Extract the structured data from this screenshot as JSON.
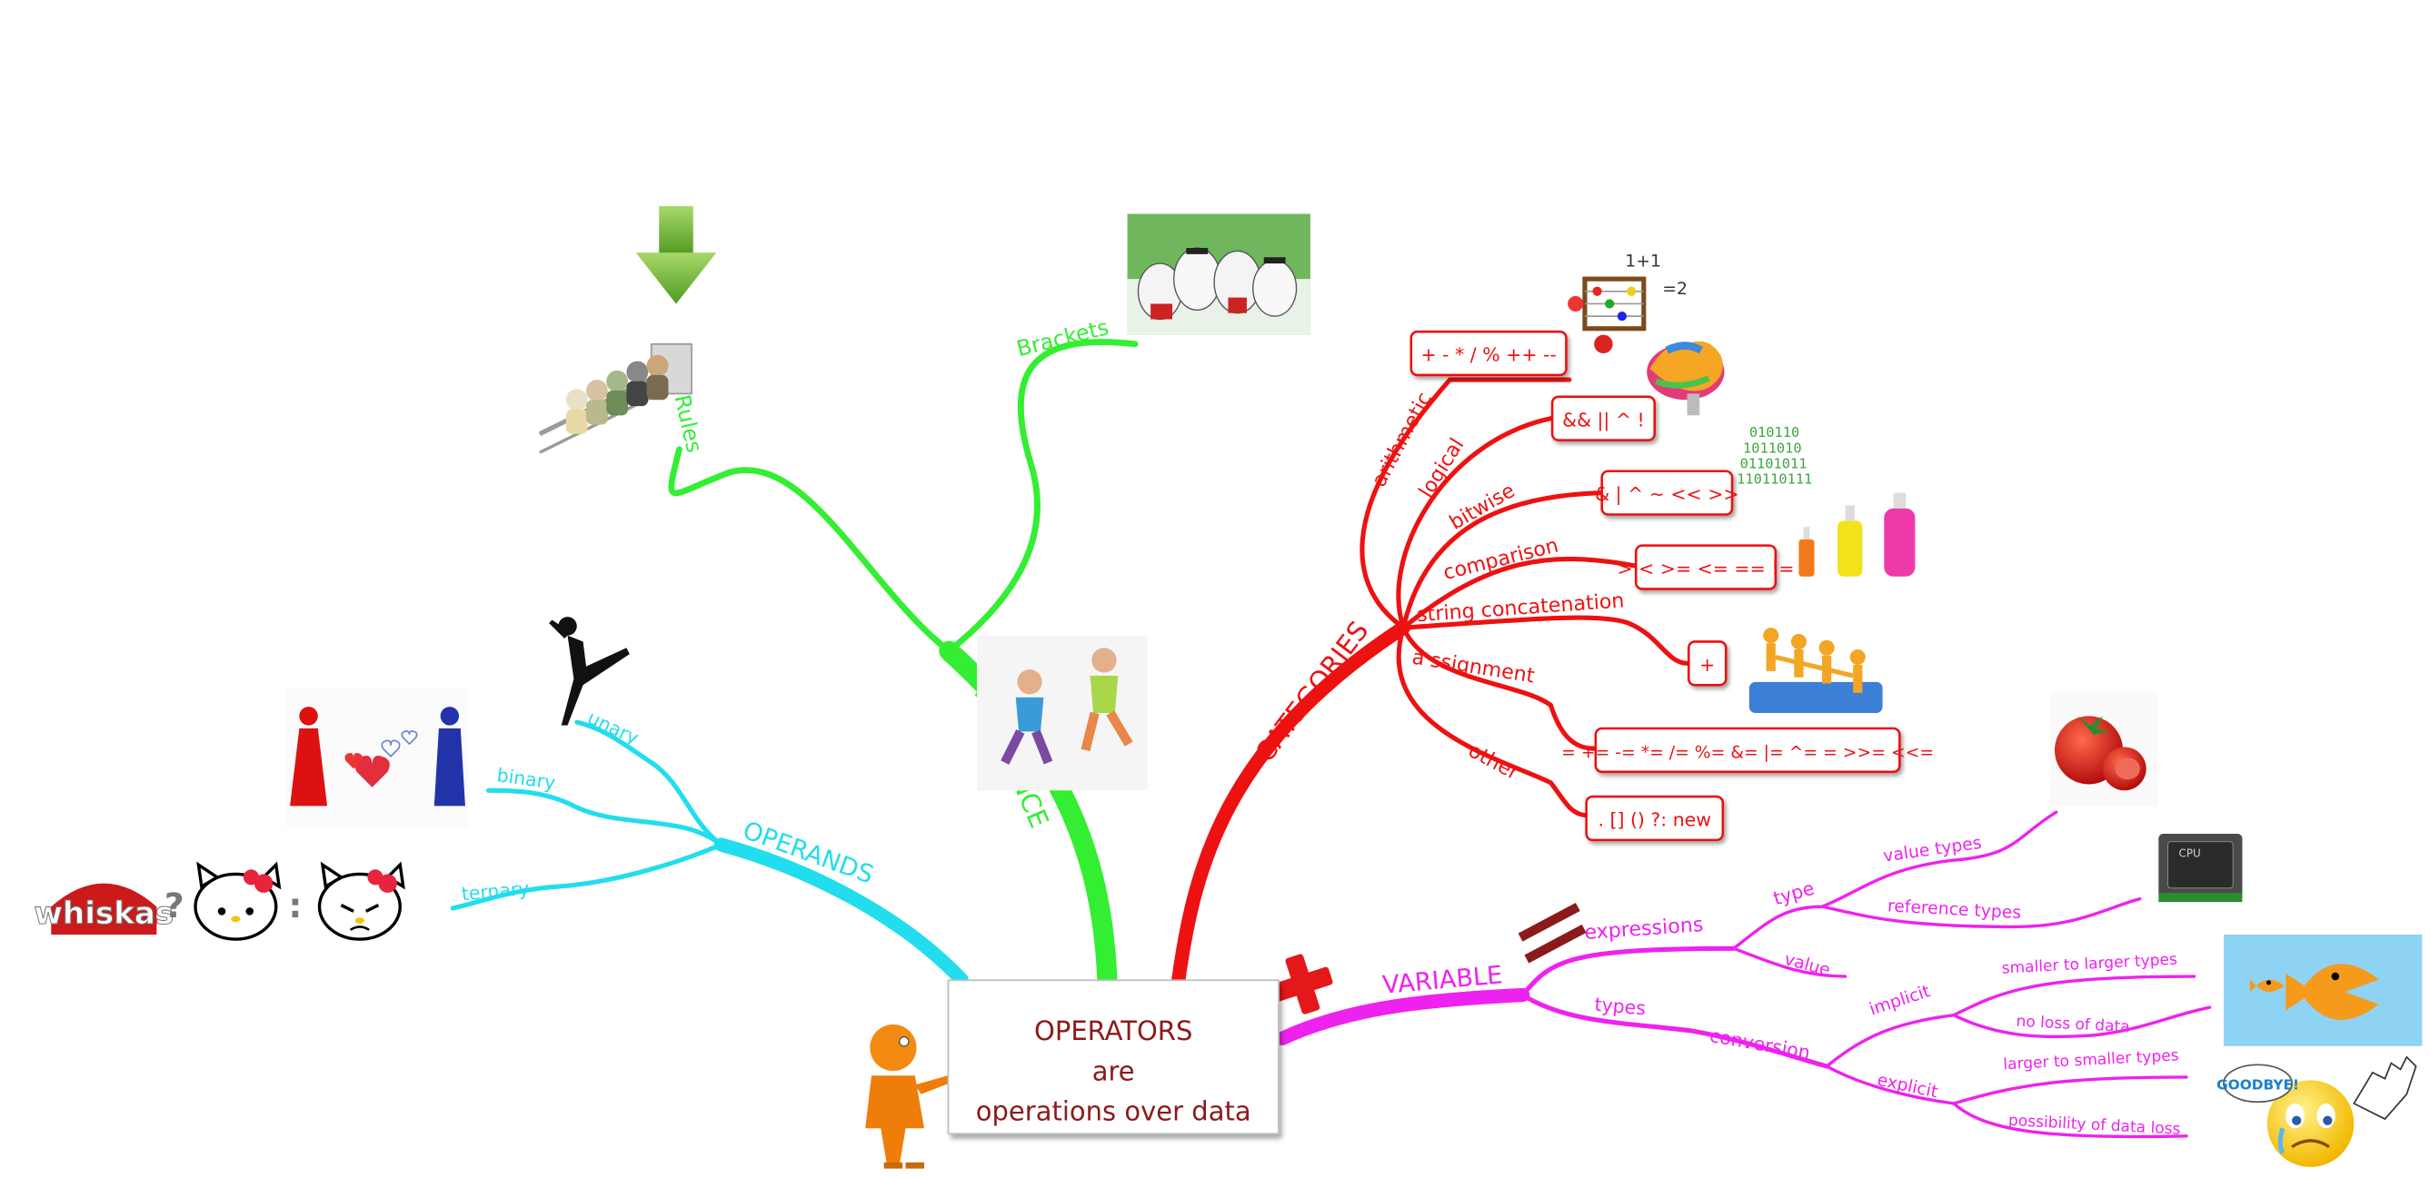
{
  "center": {
    "line1": "OPERATORS",
    "line2": "are",
    "line3": "operations over data"
  },
  "colors": {
    "precedence": "#33ee33",
    "categories": "#ee1111",
    "operands": "#22dded",
    "variable": "#ee22ee",
    "center_text": "#8b1a1a"
  },
  "precedence": {
    "label": "PRECEDENCE",
    "rules": "Rules",
    "brackets": "Brackets"
  },
  "categories": {
    "label": "CATEGORIES",
    "items": [
      {
        "name": "arithmetic",
        "ops": "+ - * / % ++ --"
      },
      {
        "name": "logical",
        "ops": "&& || ^ !"
      },
      {
        "name": "bitwise",
        "ops": "& | ^ ~ << >>"
      },
      {
        "name": "comparison",
        "ops": "> < >= <= == !="
      },
      {
        "name": "string concatenation",
        "ops": "+"
      },
      {
        "name": "a ssignment",
        "ops": "= += -= *= /= %= &= |= ^= = >>= <<="
      },
      {
        "name": "other",
        "ops": ". [] () ?: new"
      }
    ]
  },
  "operands": {
    "label": "OPERANDS",
    "unary": "unary",
    "binary": "binary",
    "ternary": "ternary",
    "whiskas_logo": "whiskas",
    "q": "?",
    "colon": ":"
  },
  "variable": {
    "label": "VARIABLE",
    "expressions": "expressions",
    "type": "type",
    "value_types": "value types",
    "reference_types": "reference types",
    "value": "value",
    "types": "types",
    "conversion": "conversion",
    "implicit": "implicit",
    "smaller_to_larger": "smaller to larger types",
    "no_loss": "no loss of data",
    "explicit": "explicit",
    "larger_to_smaller": "larger to smaller types",
    "possibility_loss": "possibility of data loss",
    "cpu_text": "CPU",
    "goodbye": "GOODBYE!"
  },
  "icons": [
    "down-arrow-icon",
    "queue-people-icon",
    "sheep-crowd-icon",
    "runners-icon",
    "abacus-icon",
    "brain-icon",
    "binary-code-icon",
    "bottles-icon",
    "puzzle-people-icon",
    "tomato-icon",
    "cpu-chip-icon",
    "big-fish-eat-small-icon",
    "crying-smiley-icon",
    "dancer-icon",
    "couple-hearts-icon",
    "hello-kitty-icon",
    "equals-sign-icon",
    "plus-sign-icon",
    "orange-presenter-icon"
  ]
}
